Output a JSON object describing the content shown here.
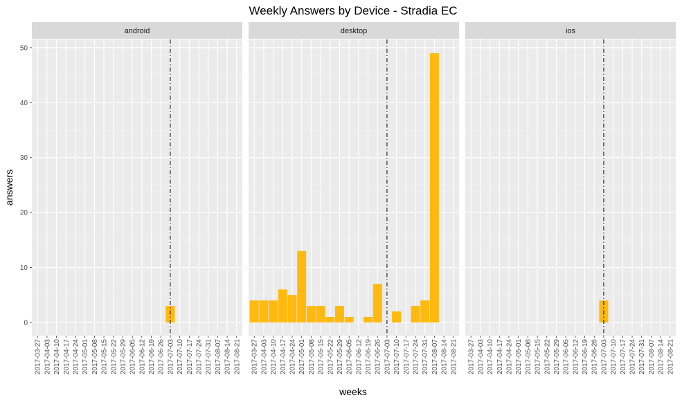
{
  "chart_data": {
    "type": "bar",
    "title": "Weekly Answers by Device - Stradia EC",
    "xlabel": "weeks",
    "ylabel": "answers",
    "ylim": [
      -2.4,
      51.5
    ],
    "yticks": [
      0,
      10,
      20,
      30,
      40,
      50
    ],
    "facets": [
      "android",
      "desktop",
      "ios"
    ],
    "weeks": [
      "2017-03-27",
      "2017-04-03",
      "2017-04-10",
      "2017-04-17",
      "2017-04-24",
      "2017-05-01",
      "2017-05-08",
      "2017-05-15",
      "2017-05-22",
      "2017-05-29",
      "2017-06-05",
      "2017-06-12",
      "2017-06-19",
      "2017-06-26",
      "2017-07-03",
      "2017-07-10",
      "2017-07-17",
      "2017-07-24",
      "2017-07-31",
      "2017-08-07",
      "2017-08-14",
      "2017-08-21"
    ],
    "reference_line_week": "2017-07-03",
    "bar_color": "#FFB90F",
    "panels": [
      {
        "facet": "android",
        "bars": [
          {
            "week": "2017-07-03",
            "value": 3
          }
        ]
      },
      {
        "facet": "desktop",
        "bars": [
          {
            "week": "2017-03-27",
            "value": 4
          },
          {
            "week": "2017-04-03",
            "value": 4
          },
          {
            "week": "2017-04-10",
            "value": 4
          },
          {
            "week": "2017-04-17",
            "value": 6
          },
          {
            "week": "2017-04-24",
            "value": 5
          },
          {
            "week": "2017-05-01",
            "value": 13
          },
          {
            "week": "2017-05-08",
            "value": 3
          },
          {
            "week": "2017-05-15",
            "value": 3
          },
          {
            "week": "2017-05-22",
            "value": 1
          },
          {
            "week": "2017-05-29",
            "value": 3
          },
          {
            "week": "2017-06-05",
            "value": 1
          },
          {
            "week": "2017-06-19",
            "value": 1
          },
          {
            "week": "2017-06-26",
            "value": 7
          },
          {
            "week": "2017-07-10",
            "value": 2
          },
          {
            "week": "2017-07-24",
            "value": 3
          },
          {
            "week": "2017-07-31",
            "value": 4
          },
          {
            "week": "2017-08-07",
            "value": 49
          }
        ]
      },
      {
        "facet": "ios",
        "bars": [
          {
            "week": "2017-07-03",
            "value": 4
          }
        ]
      }
    ]
  }
}
